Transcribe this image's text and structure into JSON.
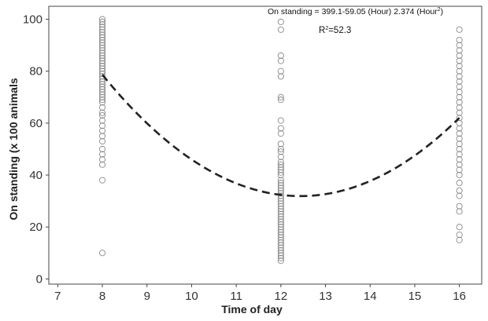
{
  "chart_data": {
    "type": "scatter",
    "title": "",
    "xlabel": "Time of day",
    "ylabel": "On standing (x 100 animals",
    "xlim": [
      6.8,
      16.5
    ],
    "ylim": [
      -2,
      105
    ],
    "xticks": [
      7,
      8,
      9,
      10,
      11,
      12,
      13,
      14,
      15,
      16
    ],
    "yticks": [
      0,
      20,
      40,
      60,
      80,
      100
    ],
    "grid": false,
    "annotations": {
      "equation_prefix": "On standing = 399.1-59.05 (Hour) 2.374 (Hour",
      "equation_sup": "2",
      "equation_suffix": ")",
      "r2_prefix": "R",
      "r2_sup": "2",
      "r2_suffix": "=52.3"
    },
    "fit": {
      "type": "quadratic",
      "coefficients": [
        399.1,
        -59.05,
        2.374
      ],
      "x_range": [
        8,
        16
      ],
      "style": "dashed"
    },
    "series": [
      {
        "marker": "open-circle",
        "points": [
          {
            "x": 8,
            "y": 100
          },
          {
            "x": 8,
            "y": 99
          },
          {
            "x": 8,
            "y": 98
          },
          {
            "x": 8,
            "y": 97
          },
          {
            "x": 8,
            "y": 96
          },
          {
            "x": 8,
            "y": 95
          },
          {
            "x": 8,
            "y": 94
          },
          {
            "x": 8,
            "y": 93
          },
          {
            "x": 8,
            "y": 92
          },
          {
            "x": 8,
            "y": 91
          },
          {
            "x": 8,
            "y": 90
          },
          {
            "x": 8,
            "y": 89
          },
          {
            "x": 8,
            "y": 88
          },
          {
            "x": 8,
            "y": 87
          },
          {
            "x": 8,
            "y": 86
          },
          {
            "x": 8,
            "y": 85
          },
          {
            "x": 8,
            "y": 84
          },
          {
            "x": 8,
            "y": 83
          },
          {
            "x": 8,
            "y": 82
          },
          {
            "x": 8,
            "y": 81
          },
          {
            "x": 8,
            "y": 80
          },
          {
            "x": 8,
            "y": 79
          },
          {
            "x": 8,
            "y": 78
          },
          {
            "x": 8,
            "y": 77
          },
          {
            "x": 8,
            "y": 76
          },
          {
            "x": 8,
            "y": 75
          },
          {
            "x": 8,
            "y": 74
          },
          {
            "x": 8,
            "y": 73
          },
          {
            "x": 8,
            "y": 72
          },
          {
            "x": 8,
            "y": 71
          },
          {
            "x": 8,
            "y": 70
          },
          {
            "x": 8,
            "y": 69
          },
          {
            "x": 8,
            "y": 68
          },
          {
            "x": 8,
            "y": 66
          },
          {
            "x": 8,
            "y": 64
          },
          {
            "x": 8,
            "y": 63
          },
          {
            "x": 8,
            "y": 61
          },
          {
            "x": 8,
            "y": 59
          },
          {
            "x": 8,
            "y": 57
          },
          {
            "x": 8,
            "y": 55
          },
          {
            "x": 8,
            "y": 53
          },
          {
            "x": 8,
            "y": 50
          },
          {
            "x": 8,
            "y": 48
          },
          {
            "x": 8,
            "y": 46
          },
          {
            "x": 8,
            "y": 44
          },
          {
            "x": 8,
            "y": 38
          },
          {
            "x": 8,
            "y": 10
          },
          {
            "x": 12,
            "y": 99
          },
          {
            "x": 12,
            "y": 96
          },
          {
            "x": 12,
            "y": 86
          },
          {
            "x": 12,
            "y": 84
          },
          {
            "x": 12,
            "y": 80
          },
          {
            "x": 12,
            "y": 78
          },
          {
            "x": 12,
            "y": 70
          },
          {
            "x": 12,
            "y": 69
          },
          {
            "x": 12,
            "y": 61
          },
          {
            "x": 12,
            "y": 58
          },
          {
            "x": 12,
            "y": 56
          },
          {
            "x": 12,
            "y": 52
          },
          {
            "x": 12,
            "y": 50
          },
          {
            "x": 12,
            "y": 49
          },
          {
            "x": 12,
            "y": 47
          },
          {
            "x": 12,
            "y": 45
          },
          {
            "x": 12,
            "y": 44
          },
          {
            "x": 12,
            "y": 43
          },
          {
            "x": 12,
            "y": 42
          },
          {
            "x": 12,
            "y": 41
          },
          {
            "x": 12,
            "y": 40
          },
          {
            "x": 12,
            "y": 38
          },
          {
            "x": 12,
            "y": 37
          },
          {
            "x": 12,
            "y": 36
          },
          {
            "x": 12,
            "y": 35
          },
          {
            "x": 12,
            "y": 34
          },
          {
            "x": 12,
            "y": 33
          },
          {
            "x": 12,
            "y": 32
          },
          {
            "x": 12,
            "y": 31
          },
          {
            "x": 12,
            "y": 30
          },
          {
            "x": 12,
            "y": 29
          },
          {
            "x": 12,
            "y": 28
          },
          {
            "x": 12,
            "y": 27
          },
          {
            "x": 12,
            "y": 26
          },
          {
            "x": 12,
            "y": 25
          },
          {
            "x": 12,
            "y": 24
          },
          {
            "x": 12,
            "y": 23
          },
          {
            "x": 12,
            "y": 22
          },
          {
            "x": 12,
            "y": 21
          },
          {
            "x": 12,
            "y": 20
          },
          {
            "x": 12,
            "y": 19
          },
          {
            "x": 12,
            "y": 18
          },
          {
            "x": 12,
            "y": 17
          },
          {
            "x": 12,
            "y": 16
          },
          {
            "x": 12,
            "y": 15
          },
          {
            "x": 12,
            "y": 14
          },
          {
            "x": 12,
            "y": 13
          },
          {
            "x": 12,
            "y": 12
          },
          {
            "x": 12,
            "y": 11
          },
          {
            "x": 12,
            "y": 10
          },
          {
            "x": 12,
            "y": 9
          },
          {
            "x": 12,
            "y": 8
          },
          {
            "x": 12,
            "y": 7
          },
          {
            "x": 16,
            "y": 96
          },
          {
            "x": 16,
            "y": 92
          },
          {
            "x": 16,
            "y": 90
          },
          {
            "x": 16,
            "y": 88
          },
          {
            "x": 16,
            "y": 86
          },
          {
            "x": 16,
            "y": 84
          },
          {
            "x": 16,
            "y": 82
          },
          {
            "x": 16,
            "y": 80
          },
          {
            "x": 16,
            "y": 78
          },
          {
            "x": 16,
            "y": 76
          },
          {
            "x": 16,
            "y": 74
          },
          {
            "x": 16,
            "y": 72
          },
          {
            "x": 16,
            "y": 70
          },
          {
            "x": 16,
            "y": 68
          },
          {
            "x": 16,
            "y": 66
          },
          {
            "x": 16,
            "y": 64
          },
          {
            "x": 16,
            "y": 62
          },
          {
            "x": 16,
            "y": 60
          },
          {
            "x": 16,
            "y": 58
          },
          {
            "x": 16,
            "y": 56
          },
          {
            "x": 16,
            "y": 54
          },
          {
            "x": 16,
            "y": 52
          },
          {
            "x": 16,
            "y": 50
          },
          {
            "x": 16,
            "y": 48
          },
          {
            "x": 16,
            "y": 46
          },
          {
            "x": 16,
            "y": 44
          },
          {
            "x": 16,
            "y": 42
          },
          {
            "x": 16,
            "y": 40
          },
          {
            "x": 16,
            "y": 37
          },
          {
            "x": 16,
            "y": 34
          },
          {
            "x": 16,
            "y": 32
          },
          {
            "x": 16,
            "y": 28
          },
          {
            "x": 16,
            "y": 26
          },
          {
            "x": 16,
            "y": 20
          },
          {
            "x": 16,
            "y": 17
          },
          {
            "x": 16,
            "y": 15
          }
        ]
      }
    ]
  },
  "colors": {
    "marker_stroke": "#8a8a8a",
    "fit_line": "#222222",
    "axis": "#444444"
  }
}
